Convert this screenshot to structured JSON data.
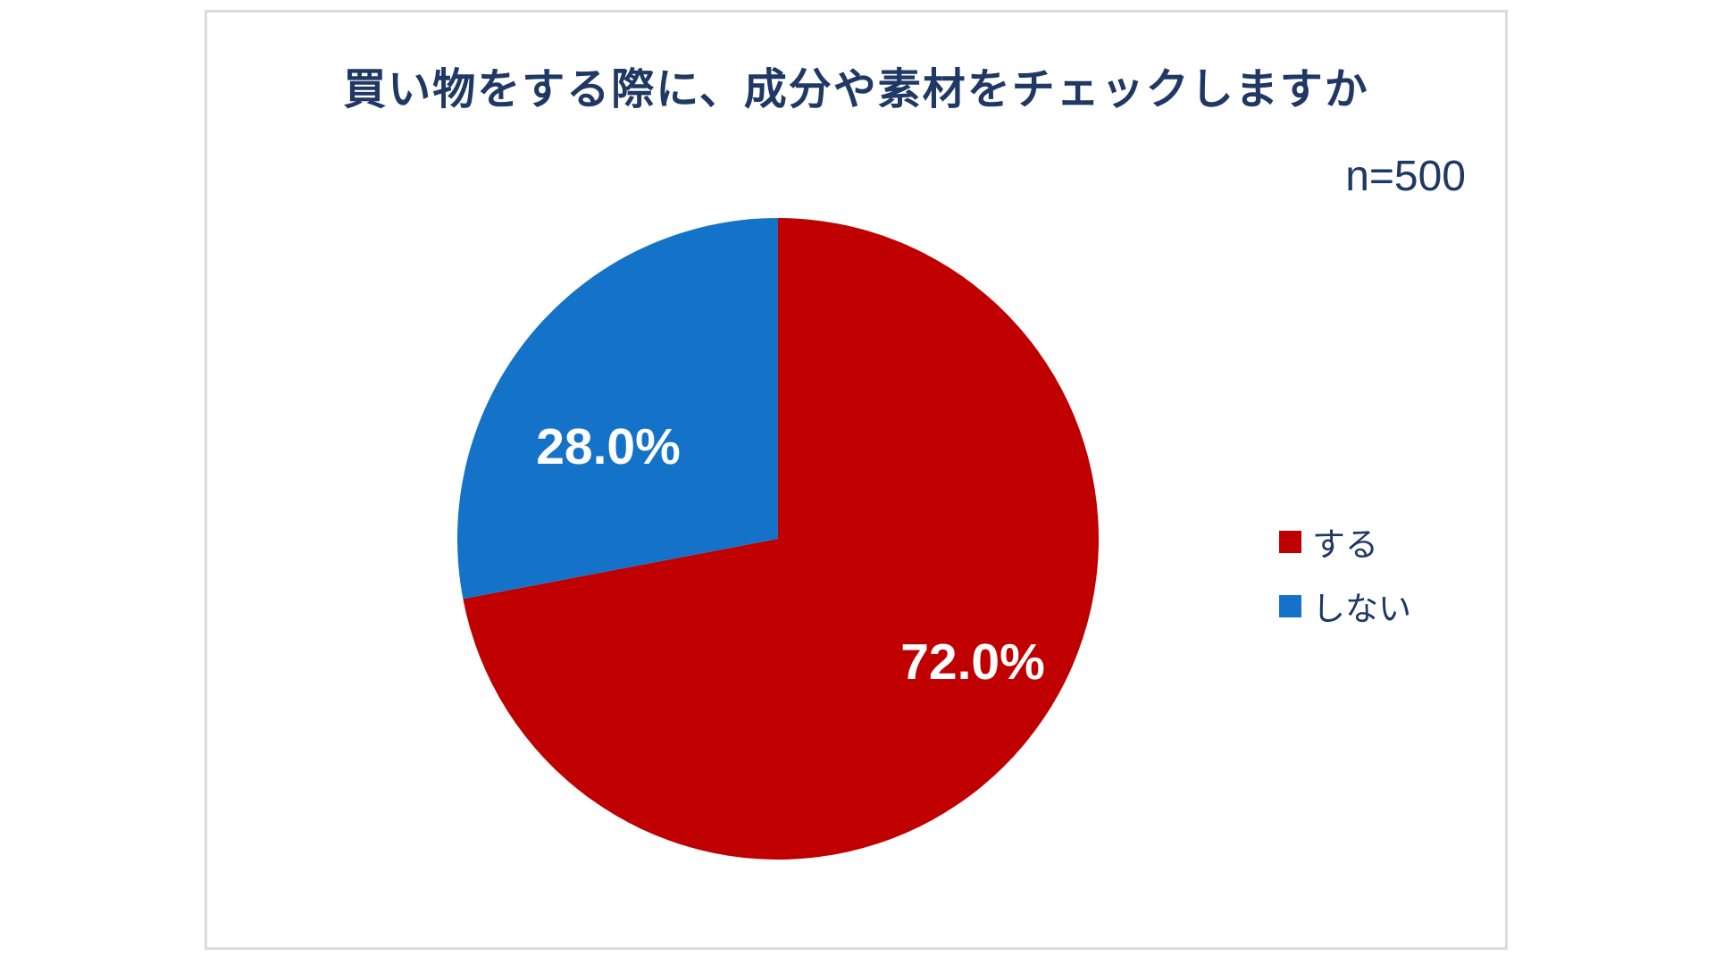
{
  "panel": {
    "background": "#FFFFFF",
    "border_color": "#DCDCDC"
  },
  "chart_data": {
    "type": "pie",
    "title": "買い物をする際に、成分や素材をチェックしますか",
    "sample_size_label": "n=500",
    "categories": [
      "する",
      "しない"
    ],
    "values": [
      72.0,
      28.0
    ],
    "data_labels": [
      "72.0%",
      "28.0%"
    ],
    "colors": [
      "#C00000",
      "#1473C8"
    ],
    "data_label_color": "#FFFFFF",
    "text_color": "#1F3864",
    "legend_position": "right",
    "start_angle_deg": 0,
    "direction": "clockwise",
    "grid": false
  }
}
